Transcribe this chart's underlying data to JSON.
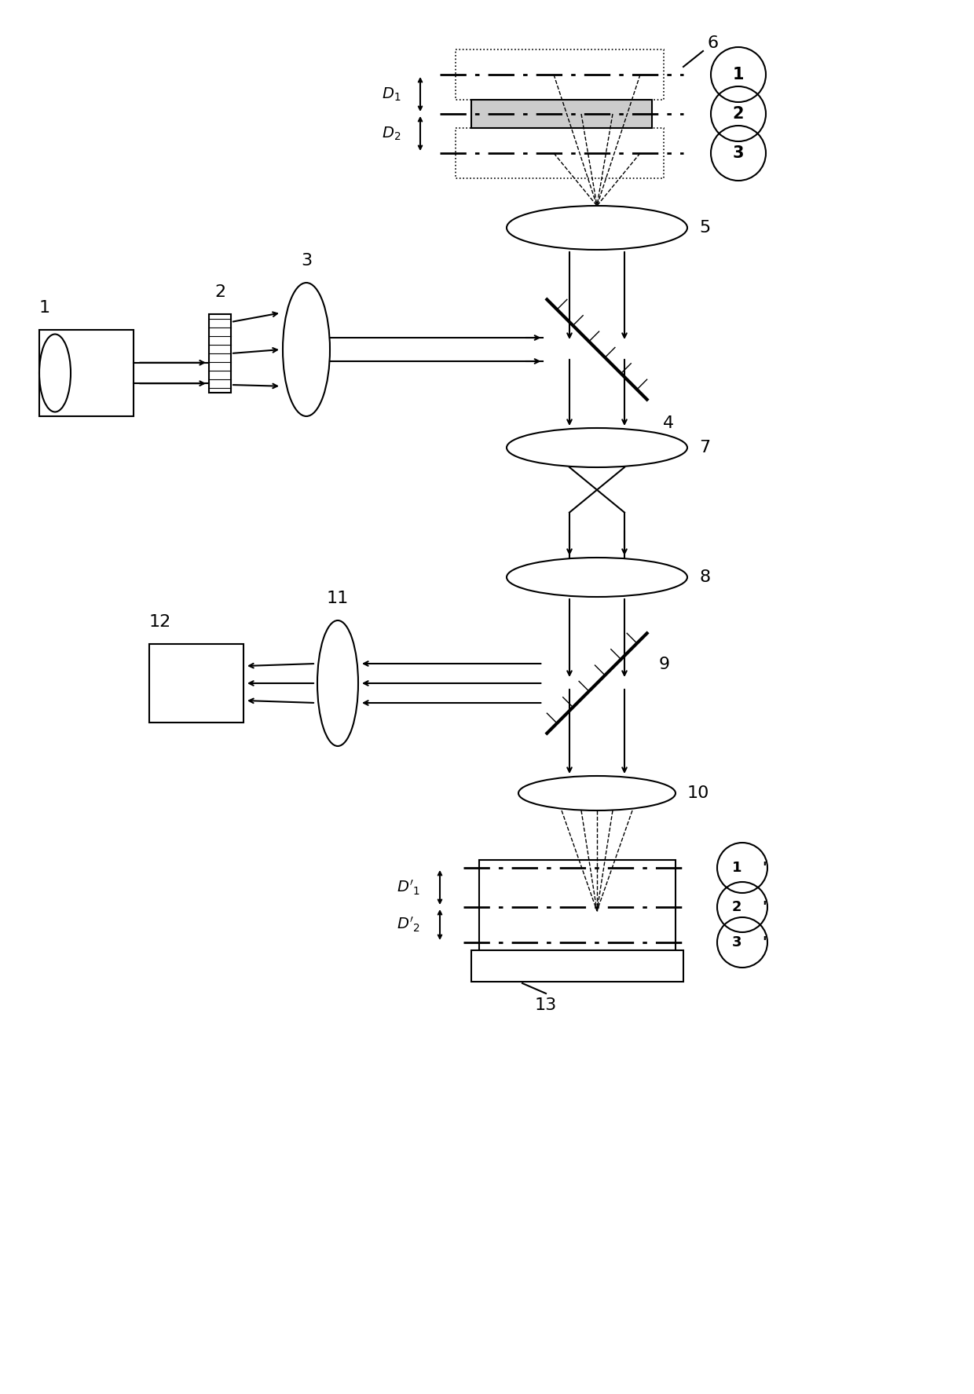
{
  "bg_color": "#ffffff",
  "lc": "#000000",
  "lw": 1.5,
  "fig_w": 12.4,
  "fig_h": 17.75,
  "dpi": 100
}
